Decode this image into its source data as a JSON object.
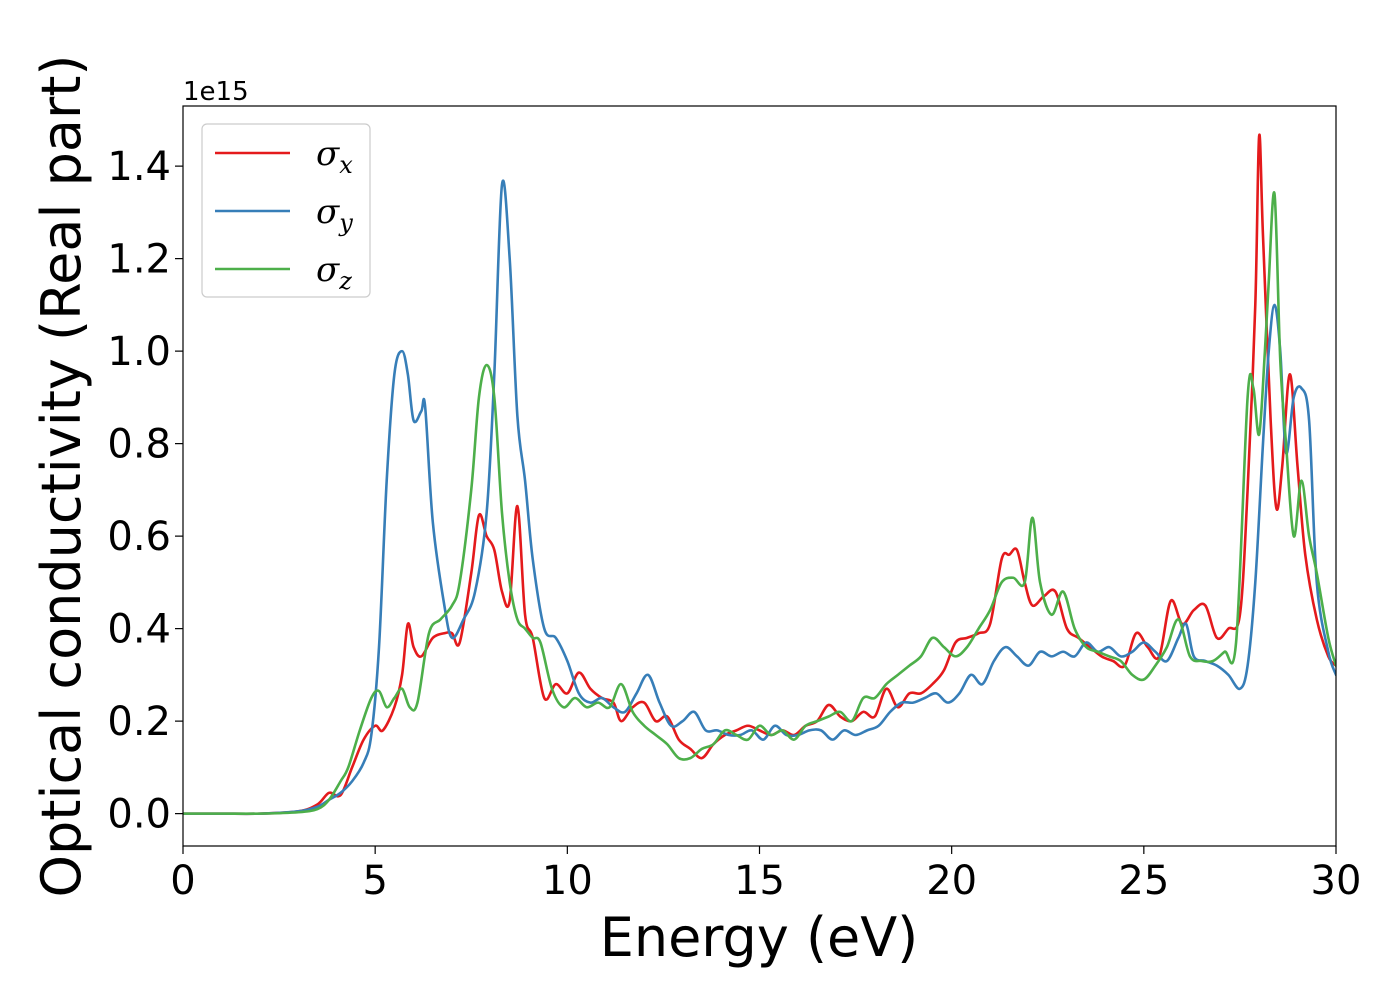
{
  "chart_data": {
    "type": "line",
    "xlabel": "Energy (eV)",
    "ylabel": "Optical conductivity (Real part)",
    "y_offset_label": "1e15",
    "xlim": [
      0,
      30
    ],
    "ylim": [
      -0.07,
      1.53
    ],
    "xticks": [
      0,
      5,
      10,
      15,
      20,
      25,
      30
    ],
    "yticks": [
      0.0,
      0.2,
      0.4,
      0.6,
      0.8,
      1.0,
      1.2,
      1.4
    ],
    "grid": false,
    "legend_position": "upper-left",
    "colors": {
      "sigma_x": "#e41a1c",
      "sigma_y": "#377eb8",
      "sigma_z": "#4daf4a"
    },
    "series": [
      {
        "name": "σx",
        "legend_main": "σ",
        "legend_sub": "x",
        "color": "#e41a1c",
        "x": [
          0,
          1,
          2,
          3,
          3.5,
          3.8,
          4.1,
          4.4,
          4.7,
          5.0,
          5.2,
          5.5,
          5.7,
          5.85,
          6.0,
          6.2,
          6.5,
          6.8,
          7.0,
          7.2,
          7.5,
          7.7,
          7.9,
          8.1,
          8.3,
          8.5,
          8.7,
          8.9,
          9.1,
          9.4,
          9.7,
          10.0,
          10.3,
          10.6,
          10.9,
          11.2,
          11.4,
          11.7,
          12.0,
          12.3,
          12.6,
          12.9,
          13.2,
          13.5,
          13.8,
          14.1,
          14.4,
          14.7,
          15.0,
          15.3,
          15.6,
          15.9,
          16.2,
          16.5,
          16.8,
          17.1,
          17.4,
          17.7,
          18.0,
          18.3,
          18.6,
          18.9,
          19.2,
          19.5,
          19.8,
          20.1,
          20.4,
          20.7,
          21.0,
          21.3,
          21.5,
          21.7,
          21.9,
          22.1,
          22.4,
          22.7,
          23.0,
          23.3,
          23.6,
          23.9,
          24.2,
          24.5,
          24.8,
          25.1,
          25.4,
          25.7,
          26.0,
          26.3,
          26.6,
          26.9,
          27.2,
          27.5,
          27.7,
          27.9,
          28.0,
          28.1,
          28.3,
          28.45,
          28.6,
          28.8,
          29.0,
          29.2,
          29.5,
          29.8,
          30.0
        ],
        "y": [
          0,
          0,
          0,
          0.005,
          0.02,
          0.045,
          0.04,
          0.1,
          0.16,
          0.19,
          0.18,
          0.23,
          0.3,
          0.41,
          0.36,
          0.34,
          0.38,
          0.39,
          0.39,
          0.37,
          0.52,
          0.645,
          0.6,
          0.57,
          0.48,
          0.46,
          0.665,
          0.43,
          0.38,
          0.25,
          0.28,
          0.26,
          0.305,
          0.27,
          0.25,
          0.24,
          0.2,
          0.23,
          0.24,
          0.2,
          0.21,
          0.16,
          0.14,
          0.12,
          0.15,
          0.17,
          0.18,
          0.19,
          0.18,
          0.17,
          0.18,
          0.17,
          0.19,
          0.2,
          0.235,
          0.21,
          0.2,
          0.22,
          0.21,
          0.27,
          0.23,
          0.26,
          0.26,
          0.28,
          0.31,
          0.37,
          0.38,
          0.39,
          0.41,
          0.55,
          0.56,
          0.57,
          0.5,
          0.45,
          0.47,
          0.48,
          0.4,
          0.38,
          0.36,
          0.34,
          0.33,
          0.32,
          0.39,
          0.36,
          0.34,
          0.46,
          0.41,
          0.44,
          0.45,
          0.38,
          0.4,
          0.43,
          0.7,
          1.1,
          1.465,
          1.25,
          0.85,
          0.66,
          0.75,
          0.95,
          0.75,
          0.56,
          0.42,
          0.34,
          0.32
        ]
      },
      {
        "name": "σy",
        "legend_main": "σ",
        "legend_sub": "y",
        "color": "#377eb8",
        "x": [
          0,
          1,
          2,
          3,
          3.5,
          3.8,
          4.1,
          4.4,
          4.7,
          4.9,
          5.1,
          5.3,
          5.5,
          5.7,
          5.85,
          6.0,
          6.2,
          6.3,
          6.5,
          6.8,
          7.0,
          7.3,
          7.6,
          7.9,
          8.1,
          8.3,
          8.5,
          8.7,
          8.9,
          9.1,
          9.4,
          9.7,
          10.0,
          10.3,
          10.6,
          10.9,
          11.2,
          11.5,
          11.8,
          12.1,
          12.4,
          12.7,
          13.0,
          13.3,
          13.6,
          13.9,
          14.2,
          14.5,
          14.8,
          15.1,
          15.4,
          15.7,
          16.0,
          16.3,
          16.6,
          16.9,
          17.2,
          17.5,
          17.8,
          18.1,
          18.4,
          18.7,
          19.0,
          19.3,
          19.6,
          19.9,
          20.2,
          20.5,
          20.8,
          21.1,
          21.4,
          21.7,
          22.0,
          22.3,
          22.6,
          22.9,
          23.2,
          23.5,
          23.8,
          24.1,
          24.4,
          24.7,
          25.0,
          25.3,
          25.6,
          25.9,
          26.1,
          26.3,
          26.6,
          26.9,
          27.2,
          27.5,
          27.7,
          27.9,
          28.1,
          28.25,
          28.4,
          28.55,
          28.7,
          28.9,
          29.1,
          29.3,
          29.5,
          29.8,
          30.0
        ],
        "y": [
          0,
          0,
          0,
          0.005,
          0.015,
          0.03,
          0.045,
          0.07,
          0.11,
          0.17,
          0.36,
          0.72,
          0.95,
          1.0,
          0.95,
          0.85,
          0.87,
          0.88,
          0.63,
          0.45,
          0.38,
          0.42,
          0.48,
          0.65,
          0.95,
          1.36,
          1.2,
          0.86,
          0.72,
          0.55,
          0.4,
          0.38,
          0.33,
          0.26,
          0.24,
          0.25,
          0.23,
          0.22,
          0.26,
          0.3,
          0.24,
          0.19,
          0.2,
          0.22,
          0.18,
          0.18,
          0.17,
          0.17,
          0.18,
          0.16,
          0.19,
          0.17,
          0.17,
          0.18,
          0.18,
          0.16,
          0.18,
          0.17,
          0.18,
          0.19,
          0.22,
          0.24,
          0.24,
          0.25,
          0.26,
          0.24,
          0.26,
          0.3,
          0.28,
          0.33,
          0.36,
          0.34,
          0.32,
          0.35,
          0.34,
          0.35,
          0.34,
          0.37,
          0.35,
          0.36,
          0.34,
          0.35,
          0.37,
          0.35,
          0.33,
          0.38,
          0.41,
          0.34,
          0.33,
          0.32,
          0.3,
          0.27,
          0.32,
          0.5,
          0.8,
          1.0,
          1.1,
          1.0,
          0.78,
          0.9,
          0.92,
          0.85,
          0.5,
          0.35,
          0.3
        ]
      },
      {
        "name": "σz",
        "legend_main": "σ",
        "legend_sub": "z",
        "color": "#4daf4a",
        "x": [
          0,
          1,
          2,
          3,
          3.5,
          3.8,
          4.1,
          4.3,
          4.6,
          4.9,
          5.1,
          5.3,
          5.5,
          5.7,
          5.9,
          6.1,
          6.4,
          6.7,
          7.0,
          7.2,
          7.5,
          7.7,
          7.9,
          8.1,
          8.3,
          8.5,
          8.7,
          8.9,
          9.1,
          9.3,
          9.6,
          9.9,
          10.2,
          10.5,
          10.8,
          11.1,
          11.4,
          11.7,
          12.0,
          12.3,
          12.6,
          12.9,
          13.2,
          13.5,
          13.8,
          14.1,
          14.4,
          14.7,
          15.0,
          15.3,
          15.6,
          15.9,
          16.2,
          16.5,
          16.8,
          17.1,
          17.4,
          17.7,
          18.0,
          18.3,
          18.6,
          18.9,
          19.2,
          19.5,
          19.8,
          20.1,
          20.4,
          20.7,
          21.0,
          21.3,
          21.6,
          21.9,
          22.1,
          22.3,
          22.6,
          22.9,
          23.2,
          23.5,
          23.8,
          24.1,
          24.4,
          24.7,
          25.0,
          25.3,
          25.6,
          25.9,
          26.2,
          26.5,
          26.8,
          27.1,
          27.4,
          27.7,
          27.85,
          28.0,
          28.15,
          28.25,
          28.4,
          28.55,
          28.7,
          28.9,
          29.1,
          29.3,
          29.5,
          29.8,
          30.0
        ],
        "y": [
          0,
          0,
          0,
          0.003,
          0.01,
          0.03,
          0.07,
          0.1,
          0.18,
          0.25,
          0.265,
          0.23,
          0.25,
          0.27,
          0.23,
          0.24,
          0.39,
          0.42,
          0.45,
          0.5,
          0.7,
          0.9,
          0.97,
          0.9,
          0.65,
          0.5,
          0.42,
          0.4,
          0.38,
          0.37,
          0.27,
          0.23,
          0.25,
          0.23,
          0.24,
          0.23,
          0.28,
          0.22,
          0.19,
          0.17,
          0.15,
          0.12,
          0.12,
          0.14,
          0.15,
          0.18,
          0.17,
          0.16,
          0.19,
          0.17,
          0.18,
          0.16,
          0.19,
          0.2,
          0.21,
          0.22,
          0.2,
          0.25,
          0.25,
          0.28,
          0.3,
          0.32,
          0.34,
          0.38,
          0.36,
          0.34,
          0.36,
          0.4,
          0.44,
          0.5,
          0.51,
          0.5,
          0.64,
          0.5,
          0.43,
          0.48,
          0.4,
          0.36,
          0.35,
          0.34,
          0.33,
          0.3,
          0.29,
          0.32,
          0.36,
          0.42,
          0.34,
          0.33,
          0.33,
          0.35,
          0.37,
          0.9,
          0.92,
          0.82,
          1.0,
          1.15,
          1.34,
          0.98,
          0.8,
          0.6,
          0.72,
          0.6,
          0.52,
          0.38,
          0.32
        ]
      }
    ]
  }
}
